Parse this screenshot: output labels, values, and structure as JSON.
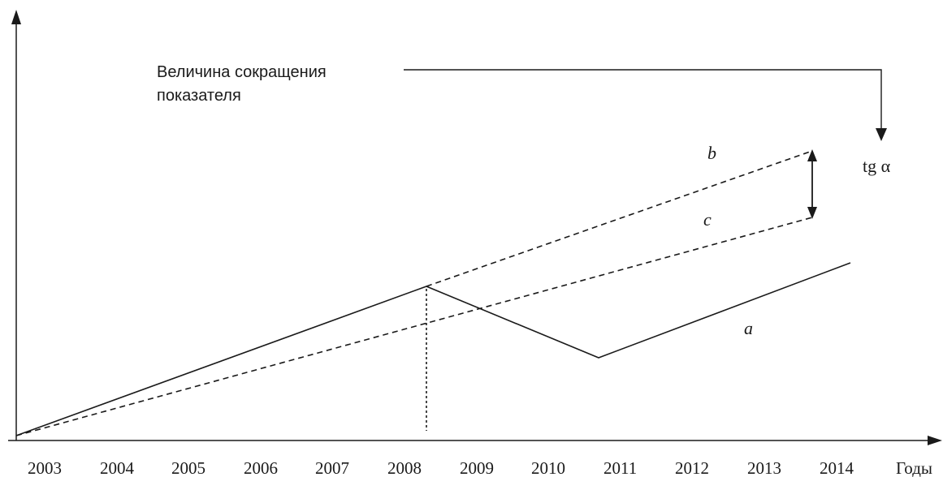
{
  "colors": {
    "ink": "#1a1a1a",
    "background": "#ffffff"
  },
  "annotation": {
    "line1": "Величина сокращения",
    "line2": "показателя"
  },
  "axis": {
    "x_unit": "Годы",
    "ticks": [
      "2003",
      "2004",
      "2005",
      "2006",
      "2007",
      "2008",
      "2009",
      "2010",
      "2011",
      "2012",
      "2013",
      "2014"
    ]
  },
  "labels": {
    "a": "a",
    "b": "b",
    "c": "c",
    "tg": "tg α"
  },
  "icons": {
    "y_axis_arrow": "arrow-up-icon",
    "x_axis_arrow": "arrow-right-icon",
    "connector_arrow": "arrow-down-icon",
    "difference_arrow": "double-arrow-icon"
  }
}
